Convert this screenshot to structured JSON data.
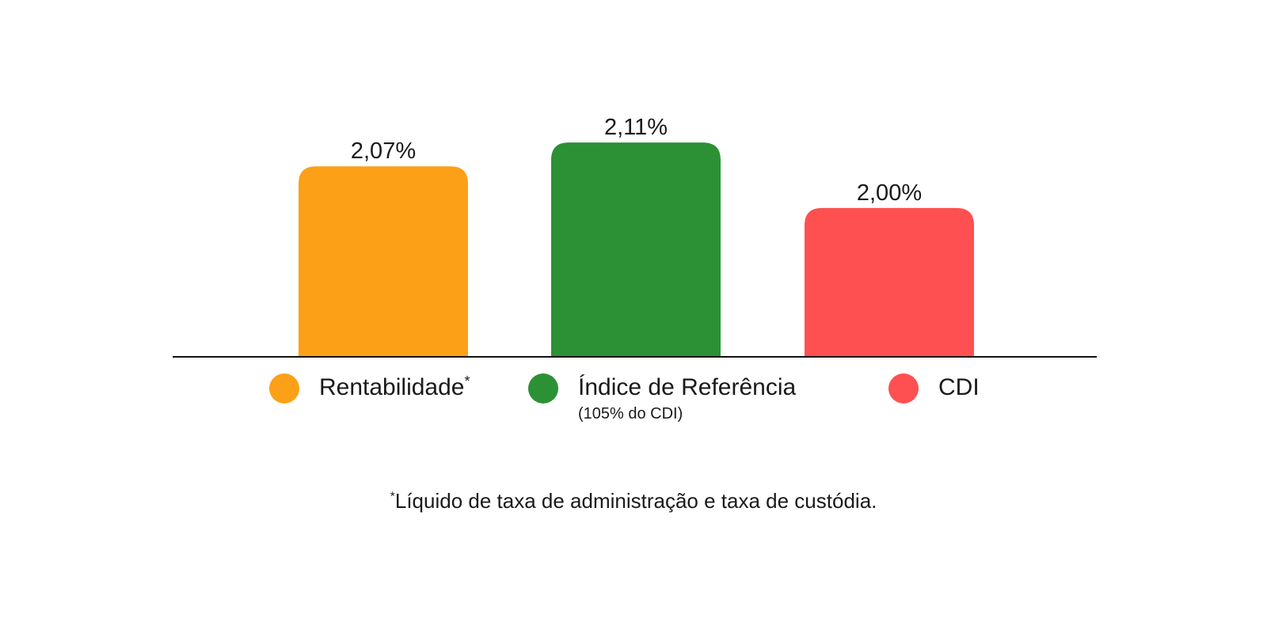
{
  "chart_data": {
    "type": "bar",
    "categories": [
      "Rentabilidade",
      "Índice de Referência",
      "CDI"
    ],
    "values": [
      2.07,
      2.11,
      2.0
    ],
    "value_labels": [
      "2,07%",
      "2,11%",
      "2,00%"
    ],
    "colors": [
      "#FBA017",
      "#2B9134",
      "#FE5050"
    ],
    "ylim": [
      1.75,
      2.15
    ],
    "grid": false,
    "legend": {
      "placement": "bottom",
      "items": [
        {
          "name": "Rentabilidade",
          "mark": "*",
          "note": "",
          "color": "#FBA017"
        },
        {
          "name": "Índice de Referência",
          "mark": "",
          "note": "(105% do CDI)",
          "color": "#2B9134"
        },
        {
          "name": "CDI",
          "mark": "",
          "note": "",
          "color": "#FE5050"
        }
      ]
    },
    "footnote": {
      "mark": "*",
      "text": "Líquido de taxa de administração e taxa de custódia."
    }
  }
}
